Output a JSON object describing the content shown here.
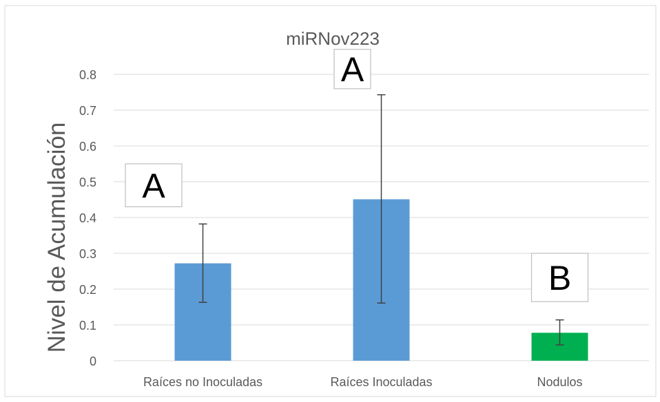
{
  "chart_data": {
    "type": "bar",
    "title": "miRNov223",
    "xlabel": "",
    "ylabel": "Nivel de Acumulación",
    "ylim": [
      0,
      0.8
    ],
    "yticks": [
      "0",
      "0.1",
      "0.2",
      "0.3",
      "0.4",
      "0.5",
      "0.6",
      "0.7",
      "0.8"
    ],
    "grid": true,
    "categories": [
      "Raíces no Inoculadas",
      "Raíces Inoculadas",
      "Nodulos"
    ],
    "values": [
      0.272,
      0.451,
      0.078
    ],
    "error_low": [
      0.163,
      0.161,
      0.044
    ],
    "error_high": [
      0.382,
      0.743,
      0.114
    ],
    "bar_colors": [
      "#5B9BD5",
      "#5B9BD5",
      "#00B050"
    ],
    "annotations": [
      {
        "text": "A",
        "category": "Raíces no Inoculadas",
        "y_bottom": 0.43,
        "y_top": 0.55
      },
      {
        "text": "A",
        "category": "Raíces Inoculadas",
        "y_bottom": 0.76,
        "y_top": 0.87
      },
      {
        "text": "B",
        "category": "Nodulos",
        "y_bottom": 0.165,
        "y_top": 0.3
      }
    ]
  }
}
